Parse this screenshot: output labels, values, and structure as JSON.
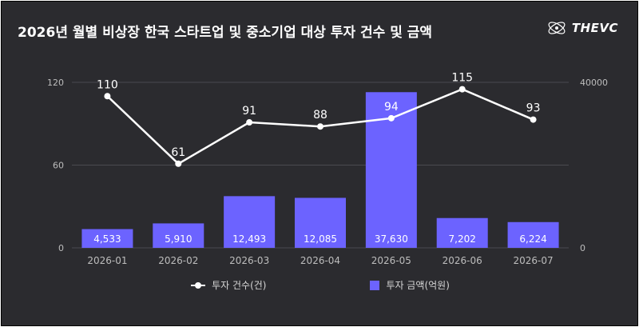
{
  "header": {
    "title": "2026년 월별 비상장 한국 스타트업 및 중소기업 대상 투자 건수 및 금액",
    "logo_text": "THEVC"
  },
  "colors": {
    "background": "#2b2b2f",
    "bar": "#6c63ff",
    "line": "#ffffff",
    "grid": "#4a4a50",
    "tick": "#bdbdbd"
  },
  "chart_data": {
    "type": "bar",
    "categories": [
      "2026-01",
      "2026-02",
      "2026-03",
      "2026-04",
      "2026-05",
      "2026-06",
      "2026-07"
    ],
    "series": [
      {
        "name": "투자 금액(억원)",
        "type": "bar",
        "axis": "right",
        "values": [
          4533,
          5910,
          12493,
          12085,
          37630,
          7202,
          6224
        ],
        "labels": [
          "4,533",
          "5,910",
          "12,493",
          "12,085",
          "37,630",
          "7,202",
          "6,224"
        ]
      },
      {
        "name": "투자 건수(건)",
        "type": "line",
        "axis": "left",
        "values": [
          110,
          61,
          91,
          88,
          94,
          115,
          93
        ],
        "labels": [
          "110",
          "61",
          "91",
          "88",
          "94",
          "115",
          "93"
        ]
      }
    ],
    "y_left": {
      "min": 0,
      "max": 120,
      "ticks": [
        0,
        60,
        120
      ]
    },
    "y_right": {
      "min": 0,
      "max": 40000,
      "ticks": [
        0,
        40000
      ]
    },
    "grid": true,
    "legend": "bottom"
  }
}
